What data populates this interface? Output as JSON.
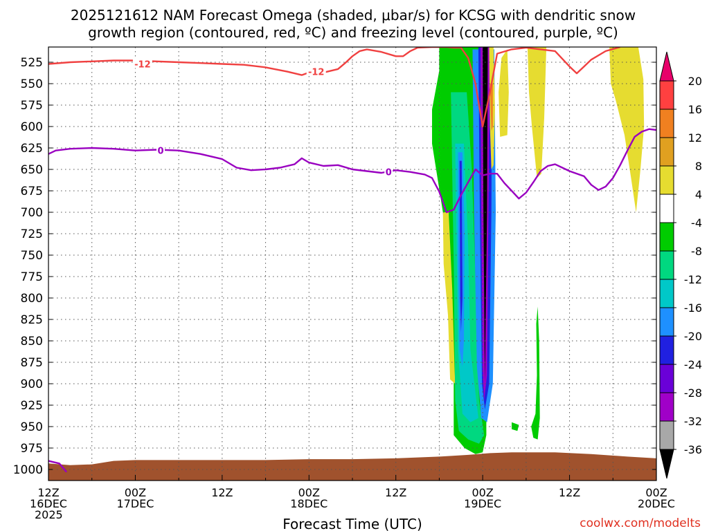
{
  "chart_data": {
    "type": "heatmap",
    "title_lines": [
      "2025121612 NAM Forecast Omega (shaded, μbar/s) for KCSG with dendritic snow",
      "growth region (contoured, red, ºC) and freezing level (contoured, purple, ºC)"
    ],
    "xlabel": "Forecast Time (UTC)",
    "credit": "coolwx.com/modelts",
    "x_ticks": [
      {
        "t": 0,
        "lines": [
          "12Z",
          "16DEC",
          "2025"
        ]
      },
      {
        "t": 12,
        "lines": [
          "00Z",
          "17DEC"
        ]
      },
      {
        "t": 24,
        "lines": [
          "12Z"
        ]
      },
      {
        "t": 36,
        "lines": [
          "00Z",
          "18DEC"
        ]
      },
      {
        "t": 48,
        "lines": [
          "12Z"
        ]
      },
      {
        "t": 60,
        "lines": [
          "00Z",
          "19DEC"
        ]
      },
      {
        "t": 72,
        "lines": [
          "12Z"
        ]
      },
      {
        "t": 84,
        "lines": [
          "00Z",
          "20DEC"
        ]
      }
    ],
    "xlim_hours": [
      0,
      84
    ],
    "y_ticks": [
      525,
      550,
      575,
      600,
      625,
      650,
      675,
      700,
      725,
      750,
      775,
      800,
      825,
      850,
      875,
      900,
      925,
      950,
      975,
      1000
    ],
    "ylim_mb": [
      510,
      1010
    ],
    "grid": true,
    "colorbar": {
      "labels": [
        "20",
        "16",
        "12",
        "8",
        "4",
        "-4",
        "-8",
        "-12",
        "-16",
        "-20",
        "-24",
        "-28",
        "-32",
        "-36"
      ],
      "colors": [
        "#e8006a",
        "#ff4040",
        "#f08020",
        "#e0a020",
        "#e6dc30",
        "#ffffff",
        "#00cc00",
        "#00d880",
        "#00c8c8",
        "#1e90ff",
        "#2020e0",
        "#6a00d8",
        "#a000c8",
        "#a8a8a8",
        "#000000"
      ]
    },
    "dgz_line": {
      "name": "-12",
      "color": "#f04040",
      "labels": [
        {
          "t": 13,
          "mb": 527,
          "text": "-12"
        },
        {
          "t": 37,
          "mb": 536,
          "text": "-12"
        }
      ],
      "points": [
        [
          0,
          527
        ],
        [
          3,
          525
        ],
        [
          6,
          524
        ],
        [
          9,
          523
        ],
        [
          12,
          523
        ],
        [
          15,
          524
        ],
        [
          18,
          525
        ],
        [
          21,
          526
        ],
        [
          24,
          527
        ],
        [
          27,
          528
        ],
        [
          30,
          531
        ],
        [
          33,
          536
        ],
        [
          35,
          540
        ],
        [
          36,
          537
        ],
        [
          38,
          537
        ],
        [
          40,
          533
        ],
        [
          41,
          526
        ],
        [
          42,
          518
        ],
        [
          43,
          512
        ],
        [
          44,
          510
        ],
        [
          46,
          513
        ],
        [
          48,
          518
        ],
        [
          49,
          518
        ],
        [
          50,
          512
        ],
        [
          51,
          508
        ],
        [
          53,
          505
        ],
        [
          55,
          505
        ],
        [
          56,
          508
        ],
        [
          57,
          508
        ],
        [
          58,
          520
        ],
        [
          59,
          550
        ],
        [
          60,
          600
        ],
        [
          61,
          560
        ],
        [
          62,
          515
        ],
        [
          64,
          510
        ],
        [
          66,
          508
        ],
        [
          68,
          510
        ],
        [
          70,
          512
        ],
        [
          72,
          530
        ],
        [
          73,
          538
        ],
        [
          74,
          530
        ],
        [
          75,
          522
        ],
        [
          77,
          512
        ],
        [
          79,
          505
        ]
      ]
    },
    "freezing_line": {
      "name": "0",
      "color": "#9900c0",
      "labels": [
        {
          "t": 15.5,
          "mb": 628,
          "text": "0"
        },
        {
          "t": 47,
          "mb": 653,
          "text": "0"
        }
      ],
      "points": [
        [
          0,
          632
        ],
        [
          1,
          628
        ],
        [
          3,
          626
        ],
        [
          6,
          625
        ],
        [
          9,
          626
        ],
        [
          12,
          628
        ],
        [
          15,
          627
        ],
        [
          18,
          628
        ],
        [
          21,
          632
        ],
        [
          24,
          638
        ],
        [
          26,
          648
        ],
        [
          28,
          651
        ],
        [
          30,
          650
        ],
        [
          32,
          648
        ],
        [
          34,
          644
        ],
        [
          35,
          637
        ],
        [
          36,
          642
        ],
        [
          38,
          646
        ],
        [
          40,
          645
        ],
        [
          42,
          650
        ],
        [
          44,
          652
        ],
        [
          46,
          654
        ],
        [
          48,
          651
        ],
        [
          50,
          653
        ],
        [
          52,
          656
        ],
        [
          53,
          660
        ],
        [
          54,
          676
        ],
        [
          55,
          700
        ],
        [
          56,
          697
        ],
        [
          57,
          680
        ],
        [
          58,
          665
        ],
        [
          59,
          650
        ],
        [
          60,
          657
        ],
        [
          61,
          655
        ],
        [
          62,
          655
        ],
        [
          63,
          666
        ],
        [
          64,
          675
        ],
        [
          65,
          684
        ],
        [
          66,
          677
        ],
        [
          67,
          665
        ],
        [
          68,
          652
        ],
        [
          69,
          646
        ],
        [
          70,
          644
        ],
        [
          71,
          648
        ],
        [
          72,
          652
        ],
        [
          74,
          658
        ],
        [
          75,
          668
        ],
        [
          76,
          674
        ],
        [
          77,
          670
        ],
        [
          78,
          660
        ],
        [
          79,
          645
        ],
        [
          80,
          628
        ],
        [
          81,
          612
        ],
        [
          82,
          606
        ],
        [
          83,
          603
        ],
        [
          84,
          604
        ]
      ]
    },
    "freezing_line_sfc": [
      [
        0,
        990
      ],
      [
        1.5,
        993
      ],
      [
        2.5,
        1003
      ]
    ],
    "omega_regions": [
      {
        "value": -6,
        "color": "#00cc00",
        "points": [
          [
            53,
            505
          ],
          [
            54,
            505
          ],
          [
            54,
            535
          ],
          [
            53,
            580
          ],
          [
            53,
            620
          ],
          [
            54.5,
            700
          ],
          [
            55.5,
            830
          ],
          [
            56,
            880
          ],
          [
            56,
            960
          ],
          [
            57.5,
            975
          ],
          [
            59,
            982
          ],
          [
            60,
            980
          ],
          [
            60.5,
            960
          ],
          [
            60.5,
            505
          ]
        ]
      },
      {
        "value": 6,
        "color": "#e6dc30",
        "points": [
          [
            62.6,
            520
          ],
          [
            63.4,
            510
          ],
          [
            63.6,
            560
          ],
          [
            63.4,
            610
          ],
          [
            62.4,
            612
          ],
          [
            62.2,
            560
          ]
        ]
      },
      {
        "value": 6,
        "color": "#e6dc30",
        "points": [
          [
            66.2,
            505
          ],
          [
            68.8,
            505
          ],
          [
            68.5,
            590
          ],
          [
            68.1,
            655
          ],
          [
            67.5,
            660
          ],
          [
            66.8,
            600
          ],
          [
            66.4,
            560
          ]
        ]
      },
      {
        "value": 6,
        "color": "#e6dc30",
        "points": [
          [
            77.5,
            505
          ],
          [
            81.5,
            505
          ],
          [
            82.2,
            545
          ],
          [
            82.3,
            600
          ],
          [
            81.8,
            650
          ],
          [
            81.2,
            700
          ],
          [
            80.5,
            660
          ],
          [
            79.6,
            610
          ],
          [
            78.4,
            570
          ],
          [
            77.7,
            550
          ]
        ]
      },
      {
        "value": 6,
        "color": "#e6dc30",
        "points": [
          [
            54.5,
            700
          ],
          [
            55.3,
            700
          ],
          [
            55.8,
            790
          ],
          [
            56.1,
            880
          ],
          [
            56.2,
            900
          ],
          [
            55.5,
            895
          ],
          [
            55.2,
            820
          ],
          [
            54.6,
            760
          ]
        ]
      },
      {
        "value": -6,
        "color": "#00cc00",
        "points": [
          [
            64,
            945
          ],
          [
            65,
            948
          ],
          [
            64.8,
            955
          ],
          [
            64,
            953
          ]
        ]
      },
      {
        "value": -6,
        "color": "#00cc00",
        "points": [
          [
            66.7,
            950
          ],
          [
            67.3,
            935
          ],
          [
            67.5,
            890
          ],
          [
            67.4,
            830
          ],
          [
            67.6,
            810
          ],
          [
            67.8,
            850
          ],
          [
            67.9,
            940
          ],
          [
            67.6,
            965
          ],
          [
            67.0,
            963
          ]
        ]
      },
      {
        "value": -10,
        "color": "#00d880",
        "points": [
          [
            55.6,
            560
          ],
          [
            57.8,
            560
          ],
          [
            58.5,
            650
          ],
          [
            59,
            780
          ],
          [
            59.5,
            920
          ],
          [
            60.2,
            960
          ],
          [
            59.5,
            970
          ],
          [
            58,
            965
          ],
          [
            56.7,
            955
          ],
          [
            56.2,
            920
          ],
          [
            56,
            760
          ]
        ]
      },
      {
        "value": -14,
        "color": "#00c8c8",
        "points": [
          [
            56.2,
            620
          ],
          [
            57.4,
            620
          ],
          [
            58,
            740
          ],
          [
            58.3,
            860
          ],
          [
            59.4,
            940
          ],
          [
            58.3,
            945
          ],
          [
            57.2,
            935
          ],
          [
            56.6,
            860
          ]
        ]
      },
      {
        "value": -18,
        "color": "#1e90ff",
        "points": [
          [
            56.6,
            630
          ],
          [
            57.2,
            630
          ],
          [
            57.5,
            720
          ],
          [
            57.4,
            850
          ],
          [
            57.2,
            880
          ],
          [
            56.8,
            860
          ],
          [
            56.6,
            760
          ]
        ]
      },
      {
        "value": -18,
        "color": "#1e90ff",
        "points": [
          [
            58.6,
            510
          ],
          [
            61.6,
            510
          ],
          [
            61.8,
            700
          ],
          [
            61.4,
            900
          ],
          [
            60.6,
            945
          ],
          [
            59.8,
            940
          ],
          [
            59.2,
            880
          ],
          [
            58.8,
            700
          ]
        ]
      },
      {
        "value": -22,
        "color": "#2020e0",
        "points": [
          [
            56.8,
            640
          ],
          [
            57.1,
            640
          ],
          [
            57.2,
            800
          ],
          [
            57.0,
            840
          ],
          [
            56.9,
            800
          ]
        ]
      },
      {
        "value": -22,
        "color": "#2020e0",
        "points": [
          [
            59.4,
            505
          ],
          [
            61.3,
            505
          ],
          [
            61.2,
            700
          ],
          [
            60.9,
            900
          ],
          [
            60.3,
            930
          ],
          [
            59.9,
            900
          ],
          [
            59.6,
            700
          ]
        ]
      },
      {
        "value": -30,
        "color": "#a000c8",
        "points": [
          [
            59.7,
            505
          ],
          [
            61.0,
            505
          ],
          [
            60.8,
            700
          ],
          [
            60.6,
            890
          ],
          [
            60.2,
            920
          ],
          [
            60.0,
            880
          ],
          [
            59.8,
            700
          ]
        ]
      },
      {
        "value": -36,
        "color": "#000000",
        "points": [
          [
            60.0,
            505
          ],
          [
            60.7,
            505
          ],
          [
            60.6,
            700
          ],
          [
            60.3,
            900
          ],
          [
            60.1,
            700
          ]
        ]
      },
      {
        "value": 6,
        "color": "#e6dc30",
        "points": [
          [
            60.9,
            505
          ],
          [
            61.5,
            505
          ],
          [
            61.7,
            580
          ],
          [
            61.5,
            645
          ],
          [
            61.2,
            650
          ],
          [
            61.0,
            600
          ]
        ]
      },
      {
        "value": 14,
        "color": "#f08020",
        "points": [
          [
            61.0,
            550
          ],
          [
            61.4,
            550
          ],
          [
            61.4,
            600
          ],
          [
            61.2,
            605
          ]
        ]
      }
    ],
    "terrain": {
      "color": "#a0522d",
      "points": [
        [
          0,
          993
        ],
        [
          3,
          995
        ],
        [
          6,
          994
        ],
        [
          9,
          990
        ],
        [
          12,
          989
        ],
        [
          18,
          989
        ],
        [
          24,
          989
        ],
        [
          30,
          989
        ],
        [
          36,
          988
        ],
        [
          42,
          988
        ],
        [
          48,
          987
        ],
        [
          54,
          985
        ],
        [
          58,
          983
        ],
        [
          61,
          981
        ],
        [
          64,
          980
        ],
        [
          70,
          980
        ],
        [
          75,
          982
        ],
        [
          80,
          985
        ],
        [
          84,
          987
        ]
      ]
    }
  }
}
